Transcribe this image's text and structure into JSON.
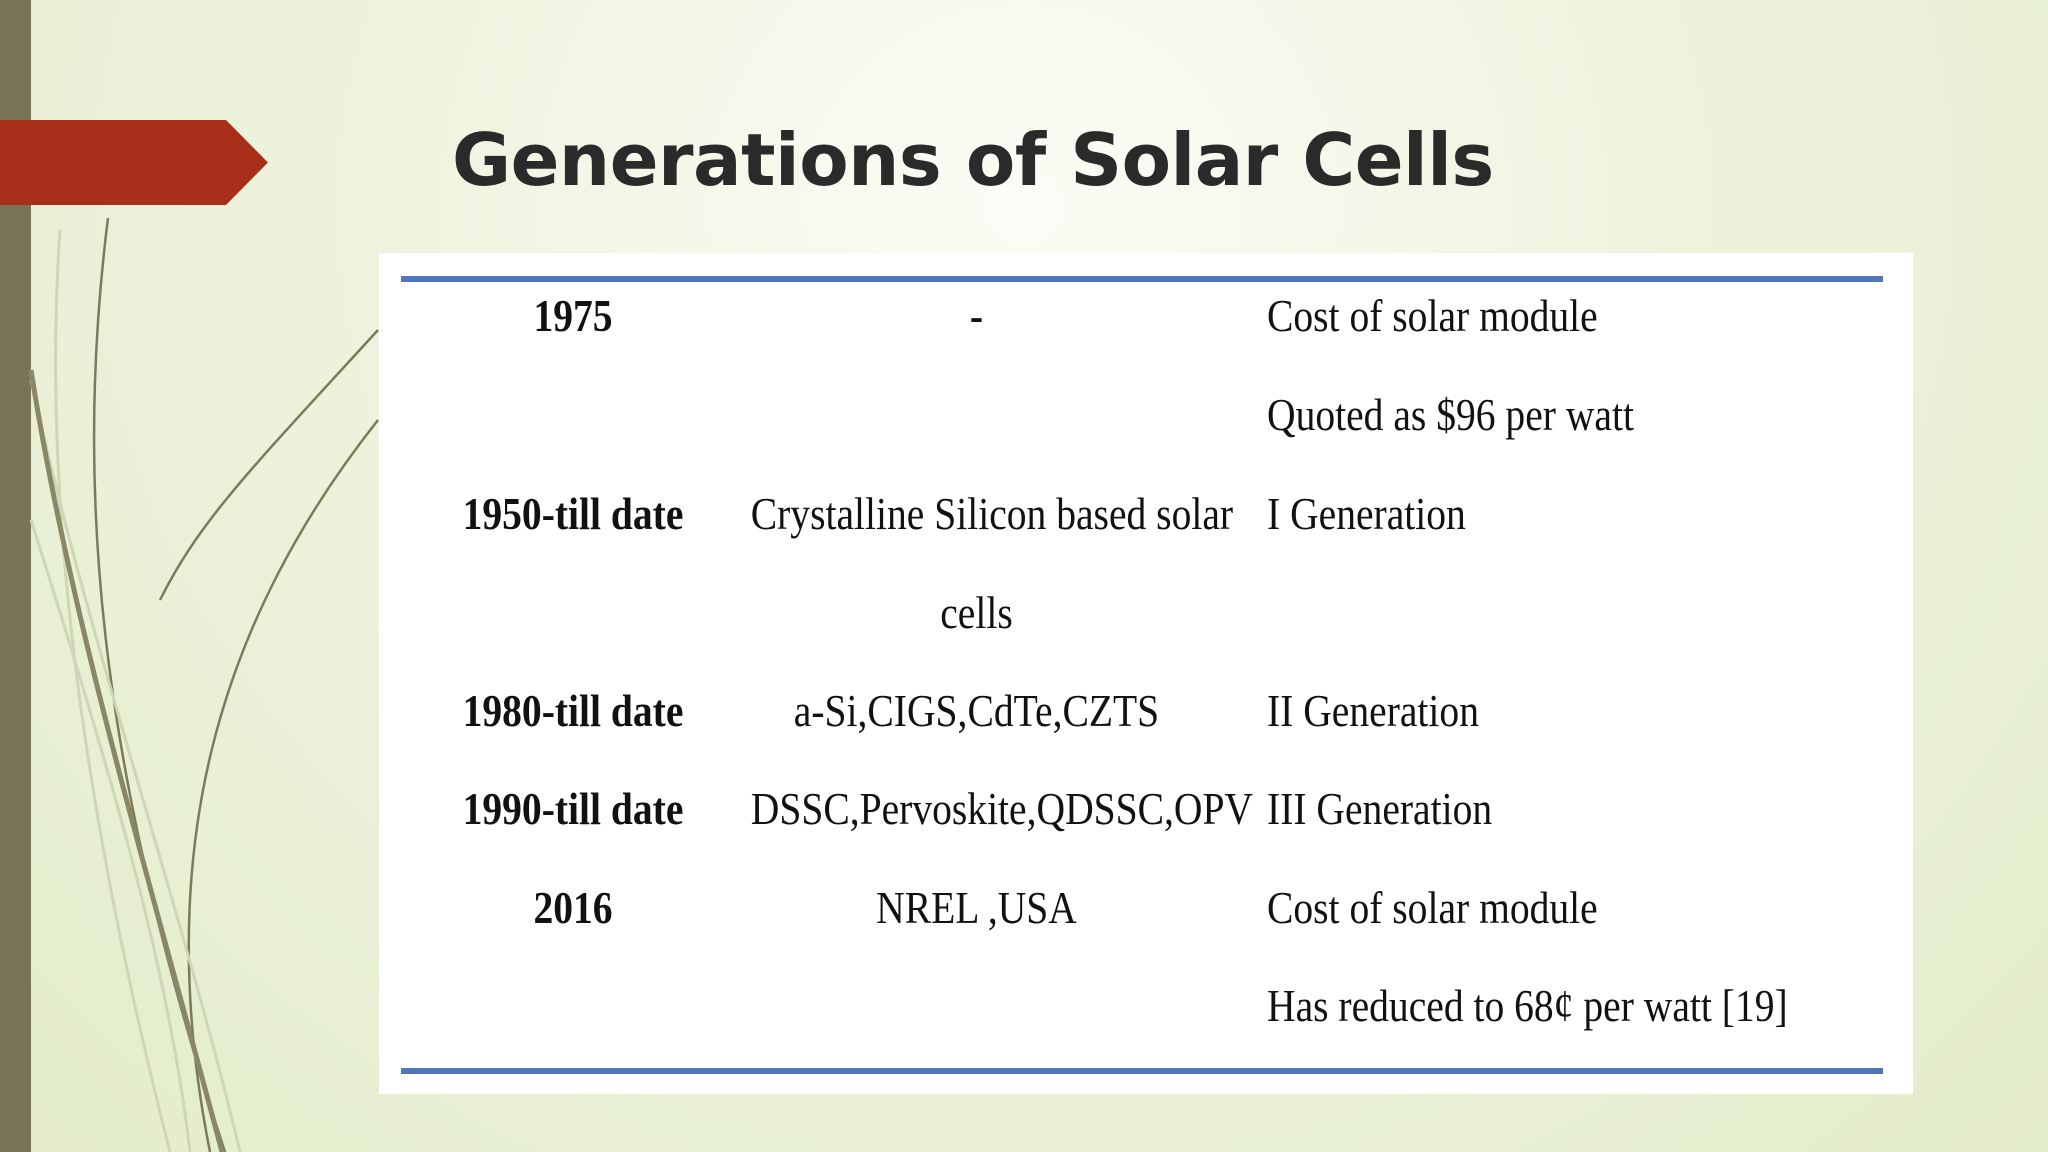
{
  "slide": {
    "title": "Generations of Solar Cells",
    "accent_color": "#a8301a",
    "rule_color": "#4f77b8"
  },
  "table": {
    "rows": [
      {
        "year": "1975",
        "technology": "-",
        "description": [
          "Cost of  solar module",
          "Quoted  as $96 per watt"
        ]
      },
      {
        "year": "1950-till date",
        "technology": [
          "Crystalline Silicon based solar",
          "cells"
        ],
        "description": [
          "I Generation"
        ]
      },
      {
        "year": "1980-till date",
        "technology": "a-Si,CIGS,CdTe,CZTS",
        "description": [
          "II Generation"
        ]
      },
      {
        "year": "1990-till date",
        "technology": "DSSC,Pervoskite,QDSSC,OPV",
        "description": [
          "III Generation"
        ]
      },
      {
        "year": "2016",
        "technology": "NREL ,USA",
        "description": [
          "Cost of  solar module",
          "Has reduced  to 68¢ per watt [19]"
        ]
      }
    ]
  }
}
